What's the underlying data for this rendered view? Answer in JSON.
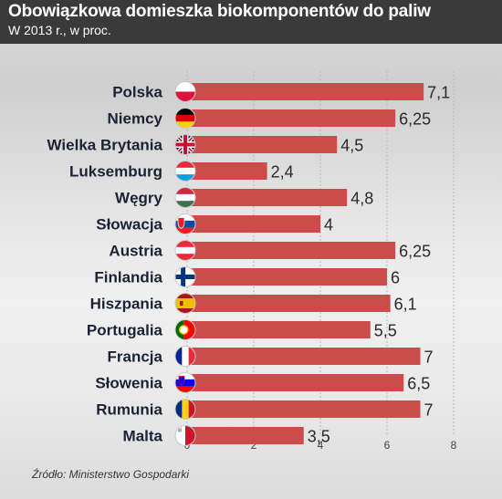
{
  "header": {
    "title": "Obowiązkowa domieszka biokomponentów do paliw",
    "subtitle": "W 2013 r., w proc."
  },
  "footer": {
    "source": "Źródło: Ministerstwo Gospodarki"
  },
  "colors": {
    "bar": "#cc4b4b",
    "header_bg": "#3a3a3a",
    "label_text": "#1b2236"
  },
  "chart_data": {
    "type": "bar",
    "orientation": "horizontal",
    "title": "Obowiązkowa domieszka biokomponentów do paliw",
    "subtitle": "W 2013 r., w proc.",
    "categories": [
      "Polska",
      "Niemcy",
      "Wielka Brytania",
      "Luksemburg",
      "Węgry",
      "Słowacja",
      "Austria",
      "Finlandia",
      "Hiszpania",
      "Portugalia",
      "Francja",
      "Słowenia",
      "Rumunia",
      "Malta"
    ],
    "values": [
      7.1,
      6.25,
      4.5,
      2.4,
      4.8,
      4,
      6.25,
      6,
      6.1,
      5.5,
      7,
      6.5,
      7,
      3.5
    ],
    "value_labels": [
      "7,1",
      "6,25",
      "4,5",
      "2,4",
      "4,8",
      "4",
      "6,25",
      "6",
      "6,1",
      "5,5",
      "7",
      "6,5",
      "7",
      "3,5"
    ],
    "flag_icons": [
      "poland-flag-icon",
      "germany-flag-icon",
      "uk-flag-icon",
      "luxembourg-flag-icon",
      "hungary-flag-icon",
      "slovakia-flag-icon",
      "austria-flag-icon",
      "finland-flag-icon",
      "spain-flag-icon",
      "portugal-flag-icon",
      "france-flag-icon",
      "slovenia-flag-icon",
      "romania-flag-icon",
      "malta-flag-icon"
    ],
    "xlim": [
      0,
      8
    ],
    "xticks": [
      0,
      2,
      4,
      6,
      8
    ],
    "xtick_labels": [
      "0",
      "2",
      "4",
      "6",
      "8"
    ],
    "grid": true
  }
}
